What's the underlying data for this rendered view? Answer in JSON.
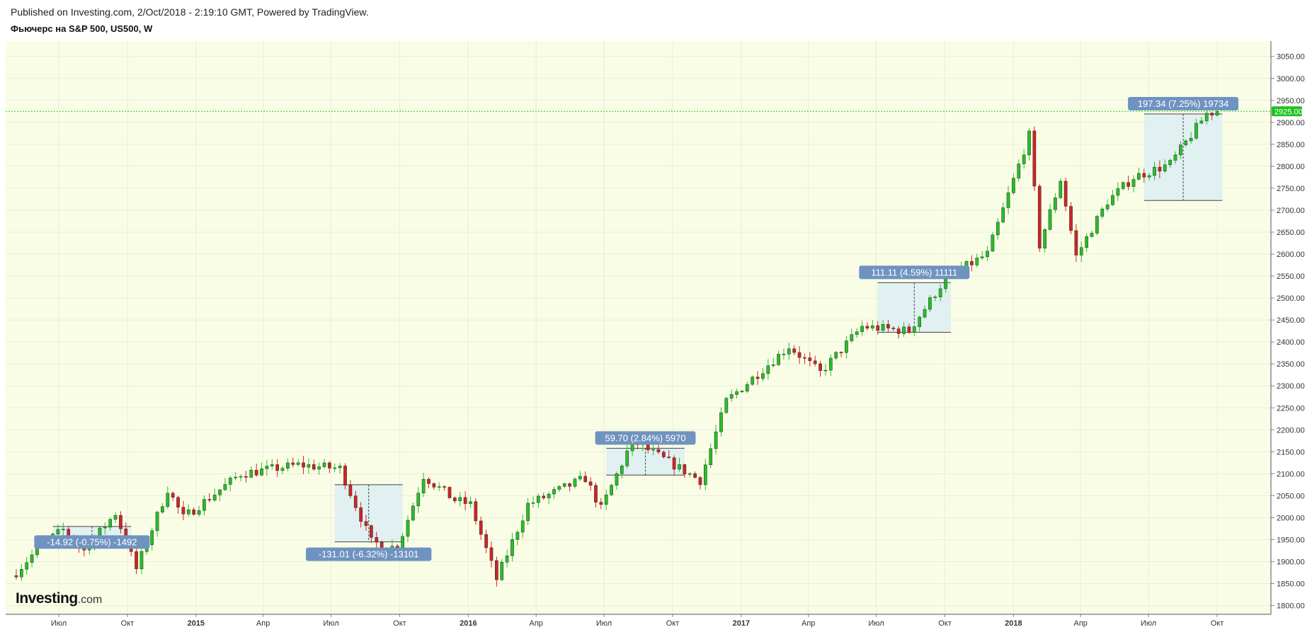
{
  "header": {
    "published": "Published on Investing.com, 2/Oct/2018 - 2:19:10 GMT, Powered by TradingView.",
    "instrument": "Фьючерс на S&P 500, US500, W"
  },
  "logo": {
    "main": "Investing",
    "suffix": ".com"
  },
  "colors": {
    "plot_bg": "#fafde6",
    "grid": "#e8eed8",
    "up": "#2bbd2b",
    "down": "#d3212a",
    "price_line": "#27c527",
    "price_badge": "#1ec31e",
    "measure_fill": "#dcedf2",
    "measure_label": "#6f93c0"
  },
  "chart_data": {
    "type": "candlestick",
    "timeframe": "W",
    "ylim": [
      1780,
      3085
    ],
    "y_ticks": [
      1800,
      1850,
      1900,
      1950,
      2000,
      2050,
      2100,
      2150,
      2200,
      2250,
      2300,
      2350,
      2400,
      2450,
      2500,
      2550,
      2600,
      2650,
      2700,
      2750,
      2800,
      2850,
      2900,
      2950,
      3000,
      3050
    ],
    "x_ticks": [
      {
        "label": "Июл",
        "date": "2014-07-01",
        "bold": false
      },
      {
        "label": "Окт",
        "date": "2014-10-01",
        "bold": false
      },
      {
        "label": "2015",
        "date": "2015-01-01",
        "bold": true
      },
      {
        "label": "Апр",
        "date": "2015-04-01",
        "bold": false
      },
      {
        "label": "Июл",
        "date": "2015-07-01",
        "bold": false
      },
      {
        "label": "Окт",
        "date": "2015-10-01",
        "bold": false
      },
      {
        "label": "2016",
        "date": "2016-01-01",
        "bold": true
      },
      {
        "label": "Апр",
        "date": "2016-04-01",
        "bold": false
      },
      {
        "label": "Июл",
        "date": "2016-07-01",
        "bold": false
      },
      {
        "label": "Окт",
        "date": "2016-10-01",
        "bold": false
      },
      {
        "label": "2017",
        "date": "2017-01-01",
        "bold": true
      },
      {
        "label": "Апр",
        "date": "2017-04-01",
        "bold": false
      },
      {
        "label": "Июл",
        "date": "2017-07-01",
        "bold": false
      },
      {
        "label": "Окт",
        "date": "2017-10-01",
        "bold": false
      },
      {
        "label": "2018",
        "date": "2018-01-01",
        "bold": true
      },
      {
        "label": "Апр",
        "date": "2018-04-01",
        "bold": false
      },
      {
        "label": "Июл",
        "date": "2018-07-01",
        "bold": false
      },
      {
        "label": "Окт",
        "date": "2018-10-01",
        "bold": false
      }
    ],
    "current_price": 2925.0,
    "current_price_label": "2925.00",
    "waypoints": [
      {
        "date": "2014-05-05",
        "close": 1876
      },
      {
        "date": "2014-06-09",
        "close": 1940
      },
      {
        "date": "2014-07-07",
        "close": 1972
      },
      {
        "date": "2014-08-04",
        "close": 1925
      },
      {
        "date": "2014-09-15",
        "close": 2010
      },
      {
        "date": "2014-10-13",
        "close": 1883
      },
      {
        "date": "2014-11-24",
        "close": 2065
      },
      {
        "date": "2014-12-15",
        "close": 2000
      },
      {
        "date": "2015-03-02",
        "close": 2100
      },
      {
        "date": "2015-05-18",
        "close": 2120
      },
      {
        "date": "2015-07-13",
        "close": 2112
      },
      {
        "date": "2015-08-24",
        "close": 1945
      },
      {
        "date": "2015-09-28",
        "close": 1930
      },
      {
        "date": "2015-11-02",
        "close": 2095
      },
      {
        "date": "2015-12-14",
        "close": 2040
      },
      {
        "date": "2016-01-04",
        "close": 2030
      },
      {
        "date": "2016-02-08",
        "close": 1860
      },
      {
        "date": "2016-03-21",
        "close": 2030
      },
      {
        "date": "2016-06-06",
        "close": 2090
      },
      {
        "date": "2016-06-27",
        "close": 2020
      },
      {
        "date": "2016-08-08",
        "close": 2175
      },
      {
        "date": "2016-11-07",
        "close": 2085
      },
      {
        "date": "2016-12-12",
        "close": 2265
      },
      {
        "date": "2017-03-06",
        "close": 2390
      },
      {
        "date": "2017-04-17",
        "close": 2330
      },
      {
        "date": "2017-06-12",
        "close": 2435
      },
      {
        "date": "2017-08-14",
        "close": 2425
      },
      {
        "date": "2017-10-02",
        "close": 2545
      },
      {
        "date": "2017-11-27",
        "close": 2600
      },
      {
        "date": "2018-01-22",
        "close": 2870
      },
      {
        "date": "2018-02-05",
        "close": 2620
      },
      {
        "date": "2018-03-05",
        "close": 2770
      },
      {
        "date": "2018-03-26",
        "close": 2595
      },
      {
        "date": "2018-05-07",
        "close": 2720
      },
      {
        "date": "2018-06-11",
        "close": 2775
      },
      {
        "date": "2018-07-30",
        "close": 2805
      },
      {
        "date": "2018-09-17",
        "close": 2920
      },
      {
        "date": "2018-10-01",
        "close": 2925
      }
    ],
    "measurements": [
      {
        "start": "2014-06-23",
        "end": "2014-10-06",
        "low": 1955,
        "high": 1980,
        "label": "-14.92 (-0.75%) -1492"
      },
      {
        "start": "2015-07-06",
        "end": "2015-10-05",
        "low": 1945,
        "high": 2075,
        "label": "-131.01 (-6.32%) -13101"
      },
      {
        "start": "2016-07-04",
        "end": "2016-10-17",
        "low": 2097,
        "high": 2158,
        "label": "59.70 (2.84%) 5970"
      },
      {
        "start": "2017-07-03",
        "end": "2017-10-09",
        "low": 2422,
        "high": 2535,
        "label": "111.11 (4.59%) 11111"
      },
      {
        "start": "2018-06-25",
        "end": "2018-10-08",
        "low": 2722,
        "high": 2919,
        "label": "197.34 (7.25%) 19734"
      }
    ]
  }
}
